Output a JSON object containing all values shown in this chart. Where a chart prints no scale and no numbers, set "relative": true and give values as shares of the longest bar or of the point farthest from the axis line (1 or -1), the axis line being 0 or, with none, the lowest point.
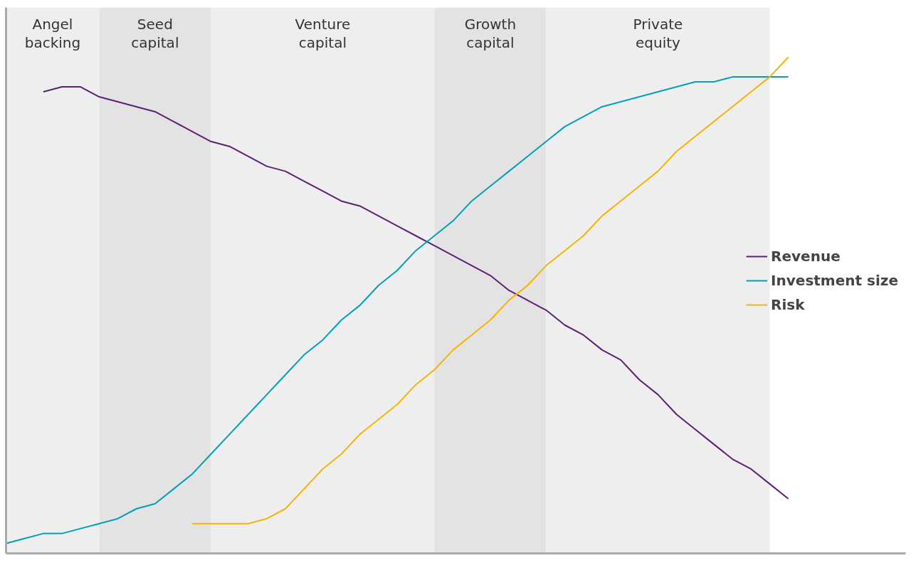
{
  "chart_data": {
    "type": "line",
    "relative": true,
    "legend": "right",
    "annotations": [
      "Angel backing",
      "Seed capital",
      "Venture capital",
      "Growth capital",
      "Private equity"
    ],
    "categories": [
      null,
      null,
      null,
      null,
      null,
      null,
      null,
      null,
      null,
      null,
      null,
      null,
      null,
      null,
      null,
      null,
      null,
      null,
      null,
      null,
      null,
      null,
      null,
      null,
      null,
      null,
      null,
      null,
      null,
      null,
      null,
      null,
      null,
      null,
      null,
      null,
      null,
      null,
      null,
      null,
      null,
      null,
      null
    ],
    "series": [
      {
        "name": "Revenue",
        "color": "#5c2173",
        "values": [
          null,
          null,
          0.93,
          0.94,
          0.94,
          0.92,
          0.91,
          0.9,
          0.89,
          0.87,
          0.85,
          0.83,
          0.82,
          0.8,
          0.78,
          0.77,
          0.75,
          0.73,
          0.71,
          0.7,
          0.68,
          0.66,
          0.64,
          0.62,
          0.6,
          0.58,
          0.56,
          0.53,
          0.51,
          0.49,
          0.46,
          0.44,
          0.41,
          0.39,
          0.35,
          0.32,
          0.28,
          0.25,
          0.22,
          0.19,
          0.17,
          0.14,
          0.11
        ]
      },
      {
        "name": "Investment size",
        "color": "#00a0b8",
        "values": [
          0.02,
          0.03,
          0.04,
          0.04,
          0.05,
          0.06,
          0.07,
          0.09,
          0.1,
          0.13,
          0.16,
          0.2,
          0.24,
          0.28,
          0.32,
          0.36,
          0.4,
          0.43,
          0.47,
          0.5,
          0.54,
          0.57,
          0.61,
          0.64,
          0.67,
          0.71,
          0.74,
          0.77,
          0.8,
          0.83,
          0.86,
          0.88,
          0.9,
          0.91,
          0.92,
          0.93,
          0.94,
          0.95,
          0.95,
          0.96,
          0.96,
          0.96,
          0.96
        ]
      },
      {
        "name": "Risk",
        "color": "#f5b400",
        "values": [
          null,
          null,
          null,
          null,
          null,
          null,
          null,
          null,
          null,
          null,
          0.06,
          0.06,
          0.06,
          0.06,
          0.07,
          0.09,
          0.13,
          0.17,
          0.2,
          0.24,
          0.27,
          0.3,
          0.34,
          0.37,
          0.41,
          0.44,
          0.47,
          0.51,
          0.54,
          0.58,
          0.61,
          0.64,
          0.68,
          0.71,
          0.74,
          0.77,
          0.81,
          0.84,
          0.87,
          0.9,
          0.93,
          0.96,
          1.0
        ]
      }
    ]
  }
}
